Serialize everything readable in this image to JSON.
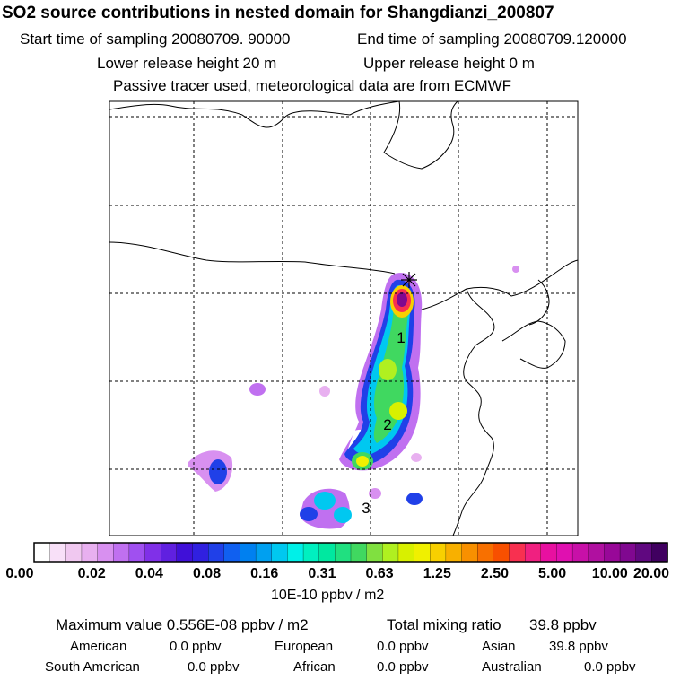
{
  "header": {
    "title": "SO2 source contributions in nested domain for Shangdianzi_200807",
    "start_label": "Start time of sampling 20080709. 90000",
    "end_label": "End time of sampling 20080709.120000",
    "lower_height": "Lower release height   20 m",
    "upper_height": "Upper release height    0 m",
    "note": "Passive tracer used, meteorological data are from ECMWF"
  },
  "map": {
    "labels": [
      "1",
      "2",
      "3"
    ],
    "source_marker": "receptor-star"
  },
  "colorbar": {
    "ticks": [
      "0.00",
      "0.02",
      "0.04",
      "0.08",
      "0.16",
      "0.31",
      "0.63",
      "1.25",
      "2.50",
      "5.00",
      "10.00",
      "20.00"
    ],
    "unit": "10E-10 ppbv / m2",
    "colors": [
      "#ffffff",
      "#f8e0f8",
      "#f0c8f0",
      "#e8b0f0",
      "#d890f0",
      "#c070f0",
      "#a050f0",
      "#8030e8",
      "#6020e0",
      "#4010d8",
      "#3020e0",
      "#2040e8",
      "#1060f0",
      "#0080f0",
      "#00a0f0",
      "#00c8f0",
      "#00f0e8",
      "#00f0c0",
      "#00e8a0",
      "#20e080",
      "#40d860",
      "#80e040",
      "#b0f020",
      "#d8f000",
      "#f0f000",
      "#f8d000",
      "#f8b000",
      "#f89000",
      "#f87000",
      "#f85000",
      "#f83050",
      "#f02080",
      "#e810a0",
      "#e010b0",
      "#c810a8",
      "#b010a0",
      "#980898",
      "#800890",
      "#600880",
      "#400060"
    ]
  },
  "footer": {
    "max_label": "Maximum value  0.556E-08 ppbv / m2",
    "total_label": "Total mixing ratio",
    "total_value": "39.8 ppbv",
    "regions": [
      {
        "name": "American",
        "value": "0.0 ppbv"
      },
      {
        "name": "European",
        "value": "0.0 ppbv"
      },
      {
        "name": "Asian",
        "value": "39.8 ppbv"
      },
      {
        "name": "South American",
        "value": "0.0 ppbv"
      },
      {
        "name": "African",
        "value": "0.0 ppbv"
      },
      {
        "name": "Australian",
        "value": "0.0 ppbv"
      }
    ]
  }
}
